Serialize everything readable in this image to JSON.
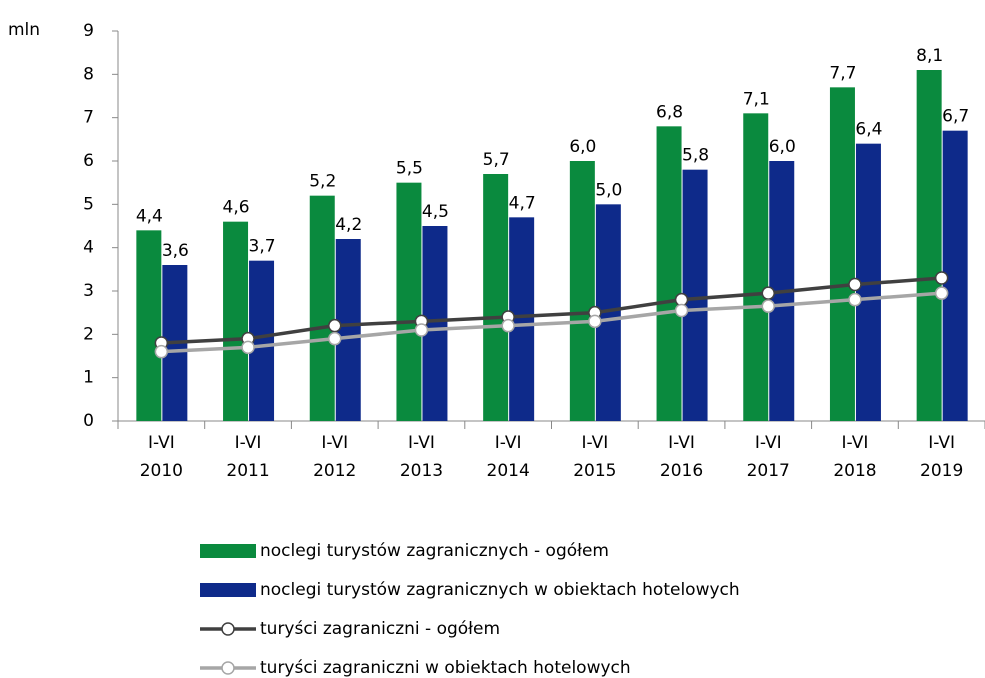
{
  "chart_data": {
    "type": "bar_line",
    "y_label": "mln",
    "categories": [
      "I-VI 2010",
      "I-VI 2011",
      "I-VI 2012",
      "I-VI 2013",
      "I-VI 2014",
      "I-VI 2015",
      "I-VI 2016",
      "I-VI 2017",
      "I-VI 2018",
      "I-VI 2019"
    ],
    "ylim": [
      0,
      9
    ],
    "yticks": [
      0,
      1,
      2,
      3,
      4,
      5,
      6,
      7,
      8,
      9
    ],
    "series": [
      {
        "name": "noclegi turystów zagranicznych - ogółem",
        "kind": "bar",
        "color": "#0a8a3e",
        "values": [
          4.4,
          4.6,
          5.2,
          5.5,
          5.7,
          6.0,
          6.8,
          7.1,
          7.7,
          8.1
        ],
        "value_labels": [
          "4,4",
          "4,6",
          "5,2",
          "5,5",
          "5,7",
          "6,0",
          "6,8",
          "7,1",
          "7,7",
          "8,1"
        ]
      },
      {
        "name": "noclegi turystów zagranicznych w obiektach hotelowych",
        "kind": "bar",
        "color": "#0e2a8a",
        "values": [
          3.6,
          3.7,
          4.2,
          4.5,
          4.7,
          5.0,
          5.8,
          6.0,
          6.4,
          6.7
        ],
        "value_labels": [
          "3,6",
          "3,7",
          "4,2",
          "4,5",
          "4,7",
          "5,0",
          "5,8",
          "6,0",
          "6,4",
          "6,7"
        ]
      },
      {
        "name": "turyści zagraniczni - ogółem",
        "kind": "line",
        "color": "#404040",
        "values": [
          1.8,
          1.9,
          2.2,
          2.3,
          2.4,
          2.5,
          2.8,
          2.95,
          3.15,
          3.3
        ]
      },
      {
        "name": "turyści zagraniczni w obiektach hotelowych",
        "kind": "line",
        "color": "#a6a6a6",
        "values": [
          1.6,
          1.7,
          1.9,
          2.1,
          2.2,
          2.3,
          2.55,
          2.65,
          2.8,
          2.95
        ]
      }
    ]
  }
}
